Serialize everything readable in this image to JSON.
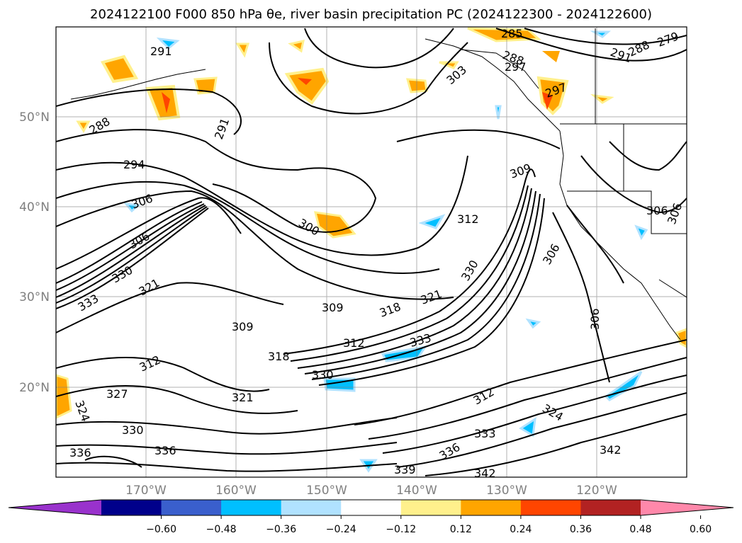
{
  "title": "2024122100 F000 850 hPa θe, river basin precipitation PC (2024122300 - 2024122600)",
  "map": {
    "lat_labels": [
      "50°N",
      "40°N",
      "30°N",
      "20°N"
    ],
    "lon_labels": [
      "170°W",
      "160°W",
      "150°W",
      "140°W",
      "130°W",
      "120°W"
    ],
    "contour_labels": [
      "291",
      "288",
      "291",
      "294",
      "306",
      "306",
      "330",
      "321",
      "333",
      "300",
      "309",
      "309",
      "318",
      "321",
      "312",
      "318",
      "312",
      "330",
      "321",
      "324",
      "327",
      "330",
      "336",
      "336",
      "333",
      "339",
      "342",
      "342",
      "333",
      "336",
      "312",
      "324",
      "306",
      "306",
      "312",
      "309",
      "285",
      "288",
      "297",
      "303",
      "297",
      "291",
      "288",
      "279",
      "306",
      "306",
      "330"
    ],
    "gridline_color": "#808080",
    "contour_color": "#000000"
  },
  "colorbar": {
    "ticks": [
      "−0.60",
      "−0.48",
      "−0.36",
      "−0.24",
      "−0.12",
      "0.12",
      "0.24",
      "0.36",
      "0.48",
      "0.60"
    ],
    "colors": [
      "#9932cc",
      "#00008b",
      "#3a5fcd",
      "#00bfff",
      "#b0e2ff",
      "#ffffff",
      "#fff08c",
      "#ffa500",
      "#ff4500",
      "#b22222",
      "#ff88aa"
    ],
    "extend": "both"
  }
}
